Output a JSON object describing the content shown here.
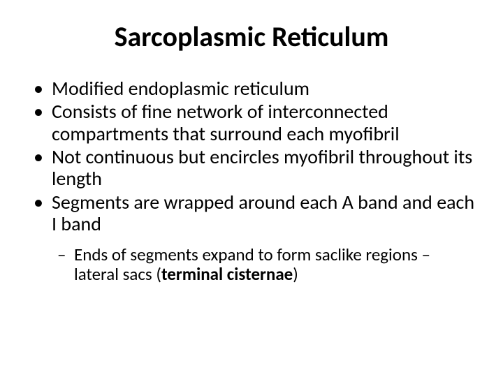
{
  "title": {
    "text": "Sarcoplasmic Reticulum",
    "fontsize": 40,
    "fontweight": 700
  },
  "bullets_level1": [
    "Modified endoplasmic reticulum",
    "Consists of fine network of interconnected compartments that surround each myofibril",
    "Not continuous but encircles myofibril throughout its length",
    "Segments are wrapped around each A band and each I band"
  ],
  "bullets_level2_prefix": "Ends of segments expand to form saclike regions – lateral sacs (",
  "bullets_level2_bold": "terminal cisternae",
  "bullets_level2_suffix": ")",
  "style": {
    "title_fontsize": 40,
    "body_fontsize": 28,
    "sub_fontsize": 25,
    "background_color": "#ffffff",
    "text_color": "#000000",
    "font_family": "Calibri"
  }
}
